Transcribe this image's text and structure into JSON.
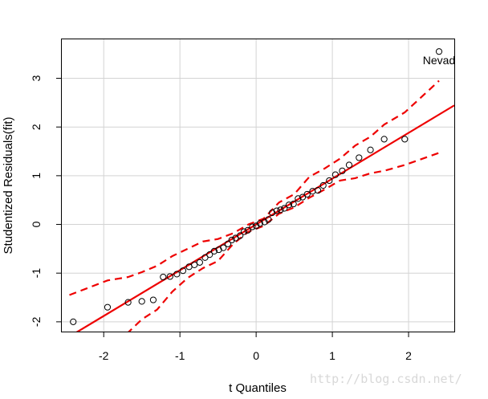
{
  "chart_data": {
    "type": "scatter",
    "title": "",
    "xlabel": "t Quantiles",
    "ylabel": "Studentized Residuals(fit)",
    "xlim": [
      -2.55,
      2.6
    ],
    "ylim": [
      -2.2,
      3.8
    ],
    "grid": true,
    "x_ticks": [
      -2,
      -1,
      0,
      1,
      2
    ],
    "y_ticks": [
      -2,
      -1,
      0,
      1,
      2,
      3
    ],
    "x_tick_labels": [
      "-2",
      "-1",
      "0",
      "1",
      "2"
    ],
    "y_tick_labels": [
      "-2",
      "-1",
      "0",
      "1",
      "2",
      "3"
    ],
    "points": {
      "x": [
        -2.4,
        -1.95,
        -1.68,
        -1.5,
        -1.35,
        -1.22,
        -1.13,
        -1.04,
        -0.96,
        -0.88,
        -0.81,
        -0.74,
        -0.67,
        -0.61,
        -0.55,
        -0.49,
        -0.43,
        -0.37,
        -0.32,
        -0.27,
        -0.21,
        -0.16,
        -0.11,
        -0.05,
        0.0,
        0.05,
        0.11,
        0.16,
        0.21,
        0.27,
        0.32,
        0.37,
        0.43,
        0.49,
        0.55,
        0.61,
        0.67,
        0.74,
        0.81,
        0.88,
        0.96,
        1.04,
        1.13,
        1.22,
        1.35,
        1.5,
        1.68,
        1.95,
        2.4
      ],
      "y": [
        -2.0,
        -1.7,
        -1.6,
        -1.58,
        -1.55,
        -1.08,
        -1.07,
        -1.02,
        -0.95,
        -0.87,
        -0.83,
        -0.78,
        -0.68,
        -0.62,
        -0.55,
        -0.52,
        -0.48,
        -0.4,
        -0.32,
        -0.28,
        -0.23,
        -0.15,
        -0.12,
        -0.05,
        -0.03,
        0.02,
        0.05,
        0.1,
        0.24,
        0.28,
        0.3,
        0.33,
        0.4,
        0.42,
        0.53,
        0.56,
        0.62,
        0.68,
        0.7,
        0.8,
        0.9,
        1.02,
        1.1,
        1.22,
        1.37,
        1.53,
        1.75,
        1.75,
        3.55
      ]
    },
    "fit_line": {
      "intercept": 0.0,
      "slope": 0.94,
      "color": "#ee0000"
    },
    "envelope_upper": {
      "x": [
        -2.45,
        -1.95,
        -1.68,
        -1.5,
        -1.3,
        -1.1,
        -0.9,
        -0.7,
        -0.5,
        -0.3,
        -0.1,
        0.1,
        0.3,
        0.5,
        0.7,
        0.9,
        1.1,
        1.3,
        1.5,
        1.68,
        1.95,
        2.4
      ],
      "y": [
        -1.45,
        -1.15,
        -1.08,
        -0.98,
        -0.85,
        -0.65,
        -0.5,
        -0.35,
        -0.3,
        -0.18,
        0.0,
        0.12,
        0.45,
        0.62,
        0.98,
        1.15,
        1.35,
        1.62,
        1.8,
        2.05,
        2.3,
        2.95
      ]
    },
    "envelope_lower": {
      "x": [
        -1.7,
        -1.5,
        -1.3,
        -1.1,
        -0.9,
        -0.7,
        -0.5,
        -0.3,
        -0.1,
        0.1,
        0.3,
        0.5,
        0.7,
        0.9,
        1.1,
        1.3,
        1.5,
        1.68,
        1.95,
        2.4
      ],
      "y": [
        -2.25,
        -1.95,
        -1.75,
        -1.38,
        -1.1,
        -0.9,
        -0.75,
        -0.4,
        -0.15,
        -0.03,
        0.22,
        0.35,
        0.55,
        0.72,
        0.9,
        0.95,
        1.05,
        1.1,
        1.22,
        1.47
      ]
    },
    "annotations": [
      {
        "text": "Nevad",
        "x": 2.4,
        "y": 3.29
      }
    ]
  },
  "watermark": "http://blog.csdn.net/"
}
